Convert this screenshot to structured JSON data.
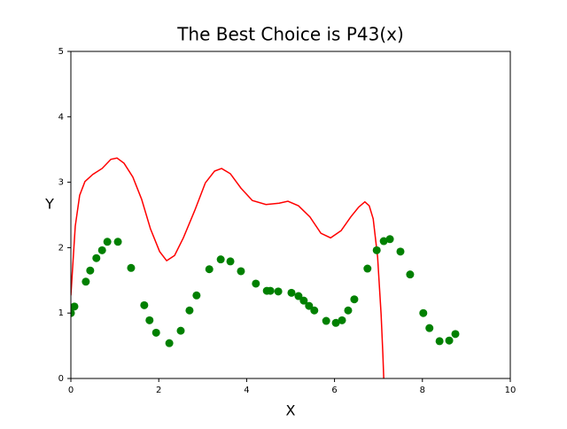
{
  "chart_data": {
    "type": "combo",
    "title": "The Best Choice is P43(x)",
    "x_label": "X",
    "y_label": "Y",
    "xlim": [
      0,
      10
    ],
    "ylim": [
      0,
      5
    ],
    "xticks": [
      0,
      2,
      4,
      6,
      8,
      10
    ],
    "yticks": [
      0,
      1,
      2,
      3,
      4,
      5
    ],
    "series": [
      {
        "type": "line",
        "color": "#ff0000",
        "x": [
          0,
          0.1,
          0.2,
          0.32,
          0.5,
          0.71,
          0.91,
          1.05,
          1.21,
          1.41,
          1.61,
          1.81,
          2.02,
          2.18,
          2.36,
          2.56,
          2.82,
          3.06,
          3.27,
          3.43,
          3.63,
          3.87,
          4.13,
          4.44,
          4.74,
          4.94,
          5.18,
          5.44,
          5.69,
          5.91,
          6.15,
          6.37,
          6.55,
          6.69,
          6.79,
          6.88,
          6.98,
          7.06,
          7.1,
          7.12
        ],
        "values": [
          1.27,
          2.33,
          2.8,
          3.01,
          3.12,
          3.21,
          3.35,
          3.37,
          3.29,
          3.08,
          2.74,
          2.29,
          1.94,
          1.8,
          1.88,
          2.15,
          2.57,
          2.99,
          3.17,
          3.21,
          3.13,
          2.91,
          2.72,
          2.66,
          2.68,
          2.71,
          2.64,
          2.47,
          2.22,
          2.15,
          2.26,
          2.47,
          2.62,
          2.7,
          2.64,
          2.44,
          1.86,
          0.98,
          0.37,
          0
        ]
      },
      {
        "type": "scatter",
        "color": "#008000",
        "x": [
          0,
          0.08,
          0.34,
          0.44,
          0.58,
          0.71,
          0.83,
          1.07,
          1.37,
          1.67,
          1.79,
          1.94,
          2.24,
          2.5,
          2.7,
          2.86,
          3.15,
          3.41,
          3.63,
          3.87,
          4.21,
          4.46,
          4.54,
          4.72,
          5.02,
          5.18,
          5.3,
          5.42,
          5.54,
          5.81,
          6.03,
          6.17,
          6.31,
          6.45,
          6.75,
          6.96,
          7.12,
          7.26,
          7.5,
          7.72,
          8.02,
          8.16,
          8.39,
          8.61,
          8.75
        ],
        "values": [
          1.0,
          1.1,
          1.48,
          1.65,
          1.84,
          1.96,
          2.09,
          2.09,
          1.69,
          1.12,
          0.89,
          0.7,
          0.54,
          0.73,
          1.04,
          1.27,
          1.67,
          1.82,
          1.79,
          1.64,
          1.45,
          1.34,
          1.34,
          1.33,
          1.31,
          1.26,
          1.19,
          1.11,
          1.04,
          0.88,
          0.85,
          0.89,
          1.04,
          1.21,
          1.68,
          1.96,
          2.1,
          2.13,
          1.94,
          1.59,
          1.0,
          0.77,
          0.57,
          0.58,
          0.68
        ]
      }
    ]
  }
}
